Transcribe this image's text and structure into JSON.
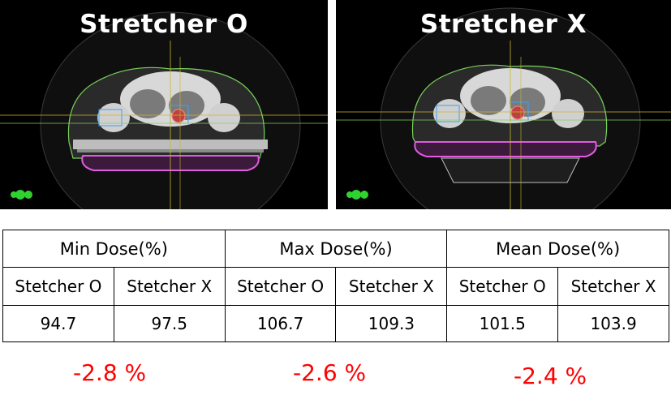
{
  "panels": {
    "left": {
      "title": "Stretcher O"
    },
    "right": {
      "title": "Stretcher X"
    }
  },
  "table": {
    "groups": [
      {
        "label": "Min Dose(%)",
        "sub": [
          "Stetcher O",
          "Stetcher X"
        ],
        "values": [
          "94.7",
          "97.5"
        ]
      },
      {
        "label": "Max Dose(%)",
        "sub": [
          "Stetcher O",
          "Stetcher X"
        ],
        "values": [
          "106.7",
          "109.3"
        ]
      },
      {
        "label": "Mean Dose(%)",
        "sub": [
          "Stetcher O",
          "Stetcher X"
        ],
        "values": [
          "101.5",
          "103.9"
        ]
      }
    ]
  },
  "differences": [
    "-2.8 %",
    "-2.6 %",
    "-2.4 %"
  ],
  "colors": {
    "difference": "#ff0000",
    "contour_outline": "#7ad35a",
    "stretcher_outline": "#e05ce0"
  }
}
